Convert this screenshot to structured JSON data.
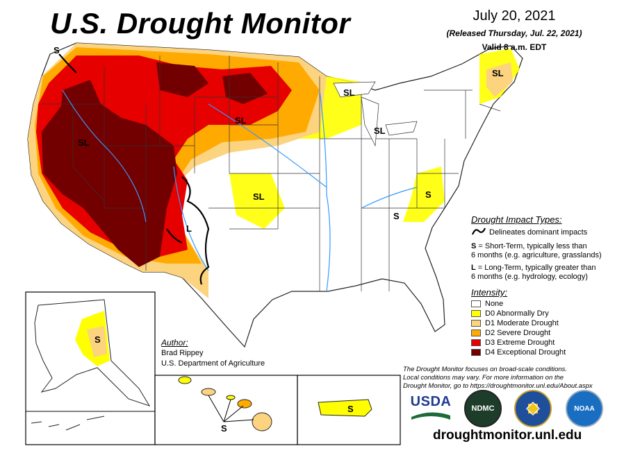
{
  "header": {
    "title": "U.S. Drought Monitor",
    "date": "July 20, 2021",
    "released": "(Released Thursday, Jul. 22, 2021)",
    "valid": "Valid 8 a.m. EDT"
  },
  "map_labels": {
    "wa": "S",
    "nw_nv": "SL",
    "dakotas": "SL",
    "kansas": "SL",
    "nm": "L",
    "ne": "SL",
    "wi": "SL",
    "mi": "SL",
    "va": "S",
    "tn": "S",
    "alaska": "S",
    "hawaii": "S",
    "puerto_rico": "S"
  },
  "impact_legend": {
    "heading": "Drought Impact Types:",
    "delineates": "Delineates dominant impacts",
    "short_term_code": "S",
    "short_term_line1": " = Short-Term, typically less than",
    "short_term_line2": "6 months (e.g. agriculture, grasslands)",
    "long_term_code": "L",
    "long_term_line1": " = Long-Term, typically greater than",
    "long_term_line2": "6 months (e.g. hydrology, ecology)"
  },
  "intensity_legend": {
    "heading": "Intensity:",
    "items": [
      {
        "label": "None",
        "color": "#ffffff"
      },
      {
        "label": "D0 Abnormally Dry",
        "color": "#ffff00"
      },
      {
        "label": "D1 Moderate Drought",
        "color": "#fcd37f"
      },
      {
        "label": "D2 Severe Drought",
        "color": "#ffaa00"
      },
      {
        "label": "D3 Extreme Drought",
        "color": "#e60000"
      },
      {
        "label": "D4 Exceptional Drought",
        "color": "#730000"
      }
    ]
  },
  "author": {
    "heading": "Author:",
    "name": "Brad Rippey",
    "org": "U.S. Department of Agriculture"
  },
  "note": {
    "line1": "The Drought Monitor focuses on broad-scale conditions.",
    "line2": "Local conditions may vary. For more information on the",
    "line3": "Drought Monitor, go to https://droughtmonitor.unl.edu/About.aspx"
  },
  "logos": {
    "usda": "USDA",
    "ndmc": "NDMC",
    "noaa": "NOAA"
  },
  "footer_url": "droughtmonitor.unl.edu"
}
